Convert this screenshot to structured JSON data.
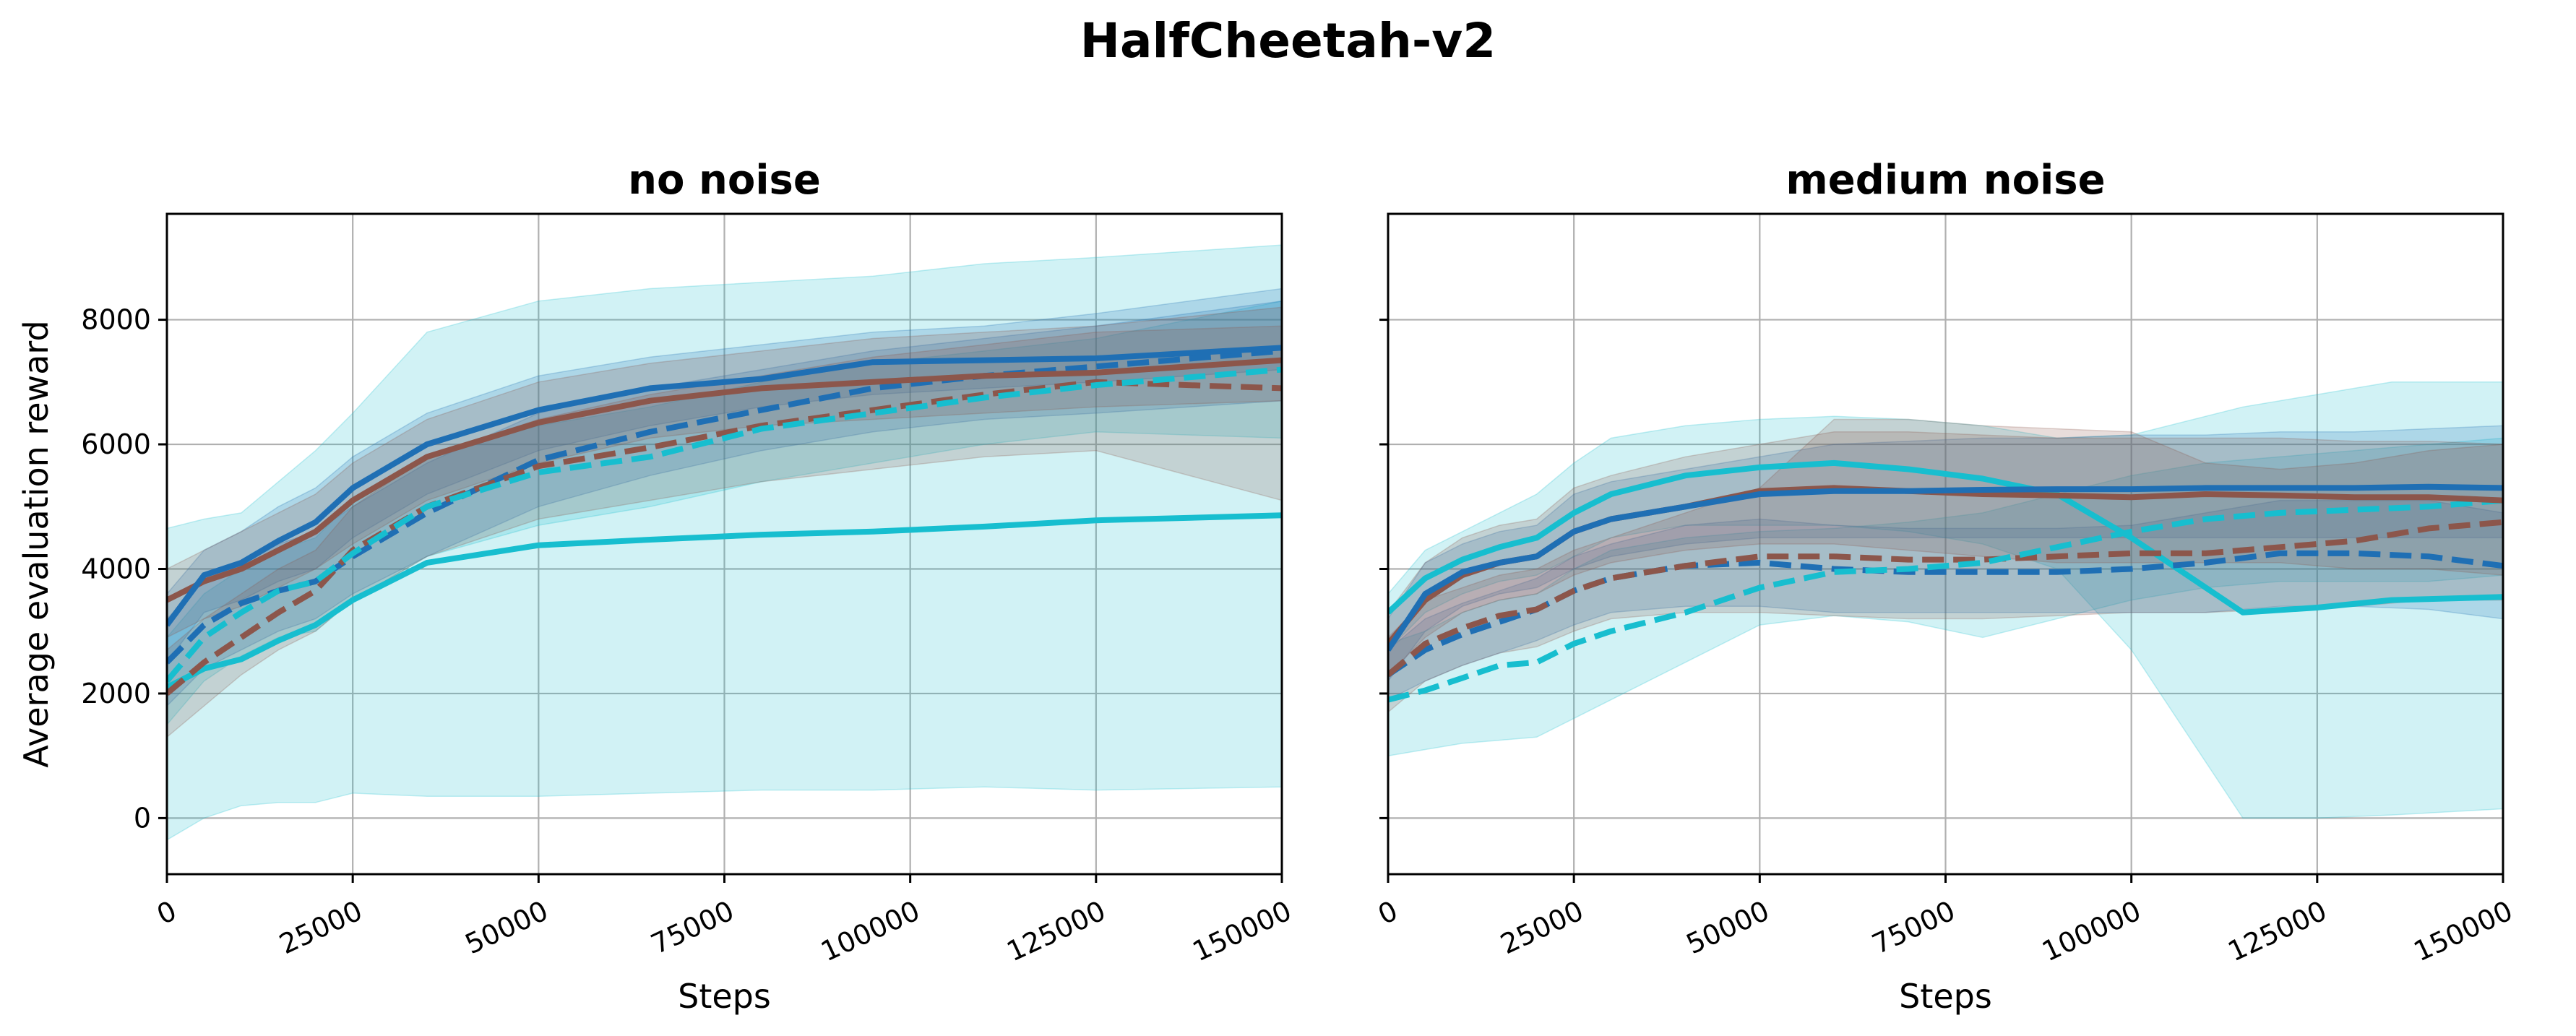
{
  "figure_title": "HalfCheetah-v2",
  "colors": {
    "blue": "#1f6fb4",
    "brown": "#8c564b",
    "cyan": "#17becf",
    "grid": "#b0b0b0"
  },
  "chart_data": [
    {
      "type": "line",
      "title": "no noise",
      "xlabel": "Steps",
      "ylabel": "Average evaluation reward",
      "xlim": [
        0,
        150000
      ],
      "ylim": [
        -900,
        9700
      ],
      "xticks": [
        0,
        25000,
        50000,
        75000,
        100000,
        125000,
        150000
      ],
      "xtick_labels": [
        "0",
        "25000",
        "50000",
        "75000",
        "100000",
        "125000",
        "150000"
      ],
      "yticks": [
        0,
        2000,
        4000,
        6000,
        8000
      ],
      "ytick_labels": [
        "0",
        "2000",
        "4000",
        "6000",
        "8000"
      ],
      "grid": true,
      "series": [
        {
          "name": "blue-solid",
          "color": "blue",
          "dash": false,
          "x": [
            0,
            5000,
            10000,
            15000,
            20000,
            25000,
            35000,
            50000,
            65000,
            80000,
            95000,
            110000,
            125000,
            150000
          ],
          "y": [
            3100,
            3900,
            4100,
            4450,
            4750,
            5300,
            6000,
            6550,
            6900,
            7050,
            7320,
            7350,
            7380,
            7550
          ],
          "lo": [
            2500,
            3300,
            3500,
            3800,
            4000,
            4500,
            5200,
            5900,
            6300,
            6600,
            6800,
            6900,
            7000,
            7200
          ],
          "hi": [
            3600,
            4300,
            4600,
            5000,
            5300,
            5800,
            6500,
            7100,
            7400,
            7600,
            7800,
            7900,
            8100,
            8500
          ]
        },
        {
          "name": "brown-solid",
          "color": "brown",
          "dash": false,
          "x": [
            0,
            5000,
            10000,
            15000,
            20000,
            25000,
            35000,
            50000,
            65000,
            80000,
            95000,
            110000,
            125000,
            150000
          ],
          "y": [
            3500,
            3800,
            4000,
            4300,
            4600,
            5100,
            5800,
            6350,
            6700,
            6900,
            7000,
            7100,
            7150,
            7350
          ],
          "lo": [
            2900,
            3200,
            3400,
            3700,
            4000,
            4400,
            5100,
            5700,
            6100,
            6300,
            6400,
            6500,
            6600,
            6700
          ],
          "hi": [
            4000,
            4300,
            4600,
            4900,
            5200,
            5700,
            6400,
            7000,
            7300,
            7500,
            7700,
            7800,
            7900,
            8200
          ]
        },
        {
          "name": "blue-dashed",
          "color": "blue",
          "dash": true,
          "x": [
            0,
            5000,
            10000,
            15000,
            20000,
            25000,
            35000,
            50000,
            65000,
            80000,
            95000,
            110000,
            125000,
            150000
          ],
          "y": [
            2500,
            3100,
            3450,
            3650,
            3800,
            4200,
            4900,
            5750,
            6200,
            6550,
            6900,
            7100,
            7250,
            7500
          ],
          "lo": [
            1800,
            2400,
            2700,
            3000,
            3200,
            3600,
            4200,
            5000,
            5500,
            5900,
            6200,
            6400,
            6500,
            6700
          ],
          "hi": [
            3200,
            3800,
            4100,
            4400,
            4600,
            5000,
            5700,
            6500,
            6900,
            7200,
            7500,
            7700,
            7900,
            8300
          ]
        },
        {
          "name": "brown-dashed",
          "color": "brown",
          "dash": true,
          "x": [
            0,
            5000,
            10000,
            15000,
            20000,
            25000,
            35000,
            50000,
            65000,
            80000,
            95000,
            110000,
            125000,
            150000
          ],
          "y": [
            2000,
            2500,
            2900,
            3300,
            3650,
            4300,
            5000,
            5650,
            5950,
            6300,
            6550,
            6800,
            7000,
            6900
          ],
          "lo": [
            1300,
            1800,
            2300,
            2700,
            3000,
            3500,
            4200,
            4800,
            5100,
            5400,
            5600,
            5800,
            5900,
            5100
          ],
          "hi": [
            2700,
            3200,
            3600,
            4000,
            4300,
            5000,
            5800,
            6400,
            6800,
            7100,
            7400,
            7600,
            7800,
            7900
          ]
        },
        {
          "name": "cyan-dashed",
          "color": "cyan",
          "dash": true,
          "x": [
            0,
            5000,
            10000,
            15000,
            20000,
            25000,
            35000,
            50000,
            65000,
            80000,
            95000,
            110000,
            125000,
            150000
          ],
          "y": [
            2200,
            2900,
            3300,
            3650,
            3800,
            4250,
            5000,
            5550,
            5800,
            6250,
            6500,
            6750,
            6950,
            7200
          ],
          "lo": [
            1500,
            2200,
            2600,
            2900,
            3000,
            3500,
            4200,
            4700,
            5000,
            5400,
            5700,
            6000,
            6200,
            6100
          ],
          "hi": [
            2900,
            3600,
            4000,
            4300,
            4500,
            5100,
            5800,
            6300,
            6600,
            7000,
            7300,
            7500,
            7700,
            8300
          ]
        },
        {
          "name": "cyan-solid",
          "color": "cyan",
          "dash": false,
          "x": [
            0,
            5000,
            10000,
            15000,
            20000,
            25000,
            35000,
            50000,
            65000,
            80000,
            95000,
            110000,
            125000,
            150000
          ],
          "y": [
            2100,
            2400,
            2550,
            2850,
            3100,
            3500,
            4100,
            4380,
            4470,
            4550,
            4600,
            4680,
            4780,
            4860
          ],
          "lo": [
            -350,
            0,
            200,
            250,
            250,
            400,
            350,
            350,
            400,
            450,
            450,
            500,
            450,
            500
          ],
          "hi": [
            4650,
            4800,
            4900,
            5400,
            5900,
            6500,
            7800,
            8300,
            8500,
            8600,
            8700,
            8900,
            9000,
            9200
          ]
        }
      ]
    },
    {
      "type": "line",
      "title": "medium noise",
      "xlabel": "Steps",
      "ylabel": "",
      "xlim": [
        0,
        150000
      ],
      "ylim": [
        -900,
        9700
      ],
      "xticks": [
        0,
        25000,
        50000,
        75000,
        100000,
        125000,
        150000
      ],
      "xtick_labels": [
        "0",
        "25000",
        "50000",
        "75000",
        "100000",
        "125000",
        "150000"
      ],
      "yticks": [
        0,
        2000,
        4000,
        6000,
        8000
      ],
      "ytick_labels": [],
      "grid": true,
      "series": [
        {
          "name": "blue-solid",
          "color": "blue",
          "dash": false,
          "x": [
            0,
            5000,
            10000,
            15000,
            20000,
            25000,
            30000,
            40000,
            50000,
            60000,
            70000,
            80000,
            90000,
            100000,
            110000,
            120000,
            130000,
            140000,
            150000
          ],
          "y": [
            2700,
            3600,
            3950,
            4100,
            4200,
            4600,
            4800,
            5000,
            5200,
            5250,
            5250,
            5270,
            5280,
            5280,
            5300,
            5300,
            5300,
            5320,
            5300
          ],
          "lo": [
            2200,
            3000,
            3400,
            3600,
            3700,
            4000,
            4200,
            4400,
            4500,
            4500,
            4500,
            4500,
            4500,
            4500,
            4500,
            4500,
            4500,
            4500,
            4500
          ],
          "hi": [
            3200,
            4100,
            4400,
            4600,
            4700,
            5200,
            5400,
            5600,
            5800,
            6000,
            6050,
            6100,
            6100,
            6150,
            6150,
            6200,
            6200,
            6250,
            6300
          ]
        },
        {
          "name": "brown-solid",
          "color": "brown",
          "dash": false,
          "x": [
            0,
            5000,
            10000,
            15000,
            20000,
            25000,
            30000,
            40000,
            50000,
            60000,
            70000,
            80000,
            90000,
            100000,
            110000,
            120000,
            130000,
            140000,
            150000
          ],
          "y": [
            2800,
            3500,
            3900,
            4100,
            4200,
            4600,
            4800,
            5000,
            5250,
            5300,
            5250,
            5200,
            5180,
            5150,
            5200,
            5180,
            5150,
            5150,
            5100
          ],
          "lo": [
            2300,
            2900,
            3300,
            3500,
            3600,
            3900,
            4100,
            4300,
            4400,
            4400,
            4300,
            4200,
            4100,
            4100,
            4100,
            4100,
            4000,
            4000,
            3900
          ],
          "hi": [
            3300,
            4100,
            4500,
            4700,
            4800,
            5300,
            5500,
            5800,
            6000,
            6200,
            6200,
            6150,
            6100,
            6100,
            6100,
            6100,
            6050,
            6050,
            6000
          ]
        },
        {
          "name": "blue-dashed",
          "color": "blue",
          "dash": true,
          "x": [
            0,
            5000,
            10000,
            15000,
            20000,
            25000,
            30000,
            40000,
            50000,
            60000,
            70000,
            80000,
            90000,
            100000,
            110000,
            120000,
            130000,
            140000,
            150000
          ],
          "y": [
            2300,
            2700,
            2950,
            3150,
            3350,
            3650,
            3850,
            4050,
            4100,
            4000,
            3950,
            3950,
            3950,
            4000,
            4100,
            4250,
            4250,
            4200,
            4050
          ],
          "lo": [
            1900,
            2200,
            2450,
            2650,
            2850,
            3100,
            3300,
            3400,
            3400,
            3300,
            3300,
            3300,
            3300,
            3300,
            3300,
            3400,
            3400,
            3350,
            3200
          ],
          "hi": [
            2700,
            3200,
            3450,
            3650,
            3850,
            4200,
            4400,
            4700,
            4800,
            4700,
            4650,
            4650,
            4650,
            4700,
            4900,
            5100,
            5100,
            5100,
            4900
          ]
        },
        {
          "name": "brown-dashed",
          "color": "brown",
          "dash": true,
          "x": [
            0,
            5000,
            10000,
            15000,
            20000,
            25000,
            30000,
            40000,
            50000,
            60000,
            70000,
            80000,
            90000,
            100000,
            110000,
            120000,
            130000,
            140000,
            150000
          ],
          "y": [
            2300,
            2800,
            3050,
            3250,
            3350,
            3650,
            3850,
            4050,
            4200,
            4200,
            4150,
            4150,
            4200,
            4250,
            4250,
            4350,
            4450,
            4650,
            4750
          ],
          "lo": [
            1700,
            2200,
            2450,
            2650,
            2750,
            3000,
            3200,
            3300,
            3300,
            3250,
            3200,
            3200,
            3250,
            3300,
            3300,
            3350,
            3400,
            3500,
            3500
          ],
          "hi": [
            2900,
            3500,
            3700,
            3900,
            4000,
            4300,
            4500,
            4900,
            5300,
            6400,
            6400,
            6300,
            6250,
            6200,
            5700,
            5600,
            5700,
            5900,
            6000
          ]
        },
        {
          "name": "cyan-solid",
          "color": "cyan",
          "dash": false,
          "x": [
            0,
            5000,
            10000,
            15000,
            20000,
            25000,
            30000,
            40000,
            50000,
            60000,
            70000,
            80000,
            90000,
            100000,
            115000,
            125000,
            135000,
            150000
          ],
          "y": [
            3300,
            3850,
            4150,
            4350,
            4500,
            4900,
            5200,
            5500,
            5630,
            5700,
            5600,
            5450,
            5200,
            4500,
            3300,
            3380,
            3500,
            3550
          ],
          "lo": [
            2700,
            3300,
            3600,
            3800,
            3900,
            4200,
            4500,
            4700,
            4700,
            4700,
            4600,
            4400,
            4000,
            2700,
            0,
            0,
            50,
            150
          ],
          "hi": [
            3600,
            4300,
            4600,
            4900,
            5200,
            5700,
            6100,
            6300,
            6400,
            6450,
            6400,
            6300,
            6100,
            6150,
            6600,
            6800,
            7000,
            7000
          ]
        },
        {
          "name": "cyan-dashed",
          "color": "cyan",
          "dash": true,
          "x": [
            0,
            5000,
            10000,
            15000,
            20000,
            25000,
            30000,
            40000,
            50000,
            60000,
            70000,
            80000,
            90000,
            100000,
            110000,
            120000,
            130000,
            140000,
            150000
          ],
          "y": [
            1900,
            2050,
            2250,
            2450,
            2500,
            2800,
            3000,
            3300,
            3700,
            3950,
            4000,
            4100,
            4350,
            4600,
            4800,
            4900,
            4950,
            5000,
            5100
          ],
          "lo": [
            1000,
            1100,
            1200,
            1250,
            1300,
            1600,
            1900,
            2500,
            3100,
            3250,
            3150,
            2900,
            3200,
            3500,
            3700,
            3800,
            3800,
            3800,
            3900
          ],
          "hi": [
            2800,
            3000,
            3300,
            3500,
            3600,
            4000,
            4300,
            4500,
            4600,
            4650,
            4750,
            4900,
            5200,
            5500,
            5700,
            5800,
            5900,
            6000,
            6100
          ]
        }
      ]
    }
  ]
}
